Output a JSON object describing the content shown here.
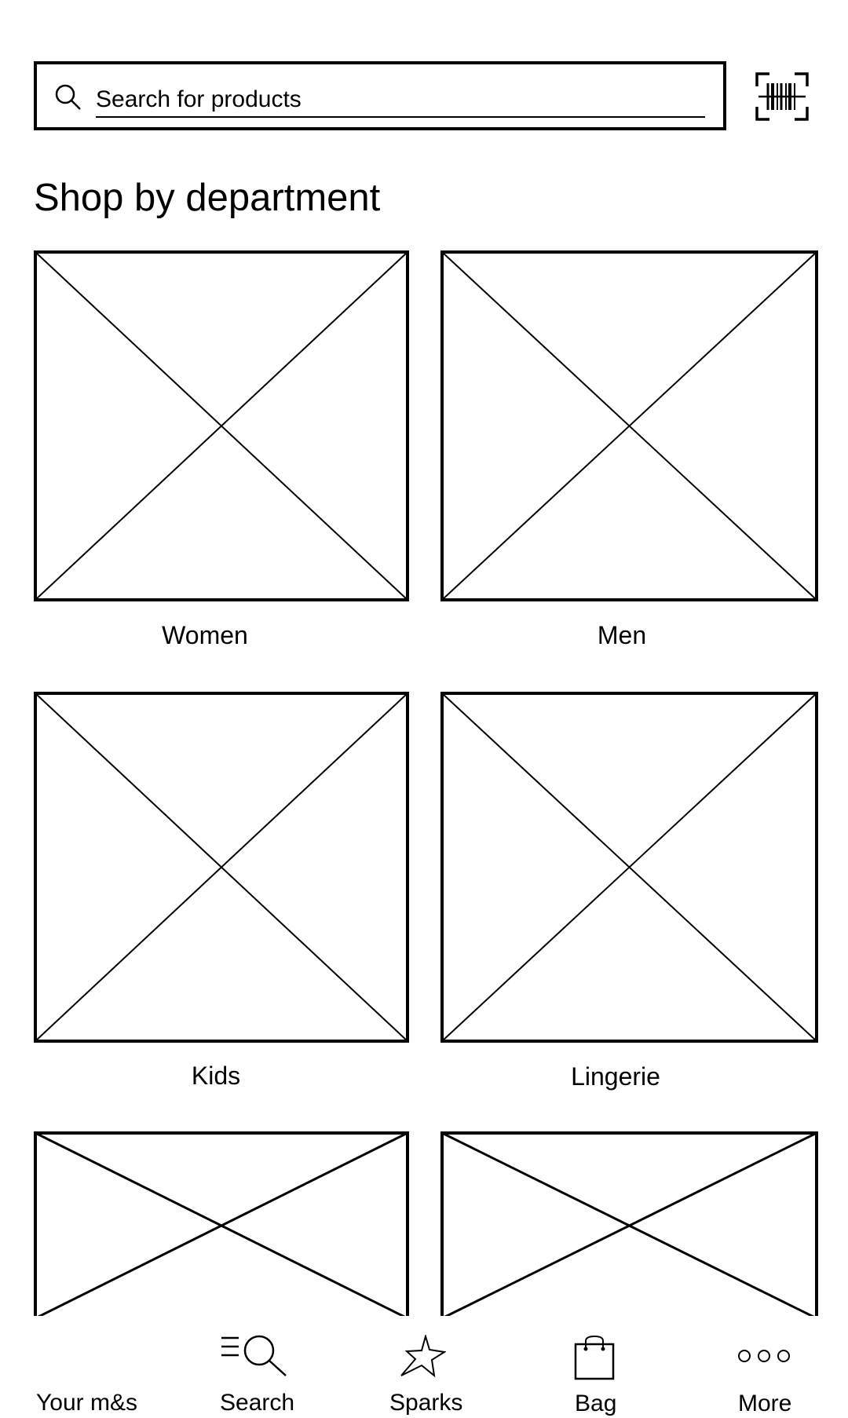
{
  "search": {
    "placeholder": "Search for products"
  },
  "icons": {
    "search": "search-icon",
    "barcode": "barcode-scan-icon",
    "placeholder_image": "image-placeholder-icon",
    "nav_your_ms": "none",
    "nav_search": "menu-search-icon",
    "nav_sparks": "star-icon",
    "nav_bag": "shopping-bag-icon",
    "nav_more": "more-dots-icon"
  },
  "department": {
    "title": "Shop by department",
    "items": [
      {
        "label": "Women"
      },
      {
        "label": "Men"
      },
      {
        "label": "Kids"
      },
      {
        "label": "Lingerie"
      },
      {
        "label": ""
      },
      {
        "label": ""
      }
    ]
  },
  "nav": {
    "items": [
      {
        "label": "Your m&s"
      },
      {
        "label": "Search"
      },
      {
        "label": "Sparks"
      },
      {
        "label": "Bag"
      },
      {
        "label": "More"
      }
    ]
  }
}
